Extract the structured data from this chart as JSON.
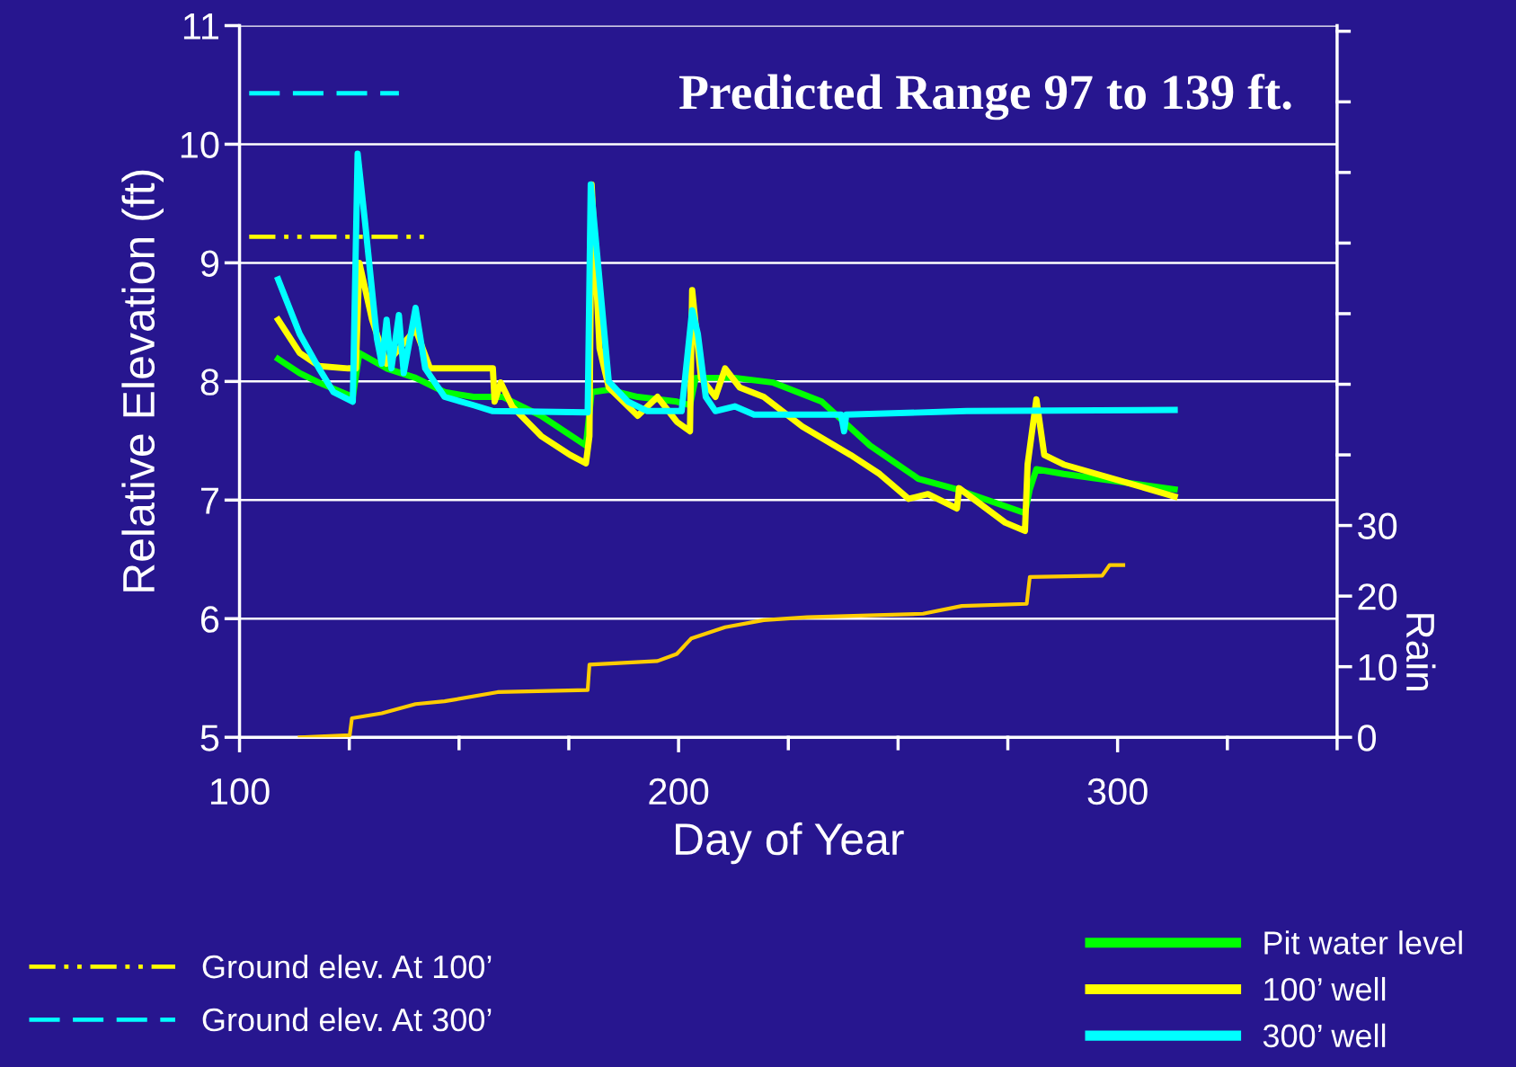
{
  "chart_data": {
    "type": "line",
    "xlabel": "Day of Year",
    "ylabel": "Relative Elevation (ft)",
    "y2label": "Rain",
    "annotations": [
      "Predicted Range 97 to 139 ft."
    ],
    "xlim": [
      100,
      350
    ],
    "xticks": [
      100,
      {
        "value": 125,
        "label": null
      },
      {
        "value": 150,
        "label": null
      },
      {
        "value": 175,
        "label": null
      },
      200,
      {
        "value": 225,
        "label": null
      },
      {
        "value": 250,
        "label": null
      },
      {
        "value": 275,
        "label": null
      },
      300,
      {
        "value": 325,
        "label": null
      },
      {
        "value": 350,
        "label": null
      }
    ],
    "ylim": [
      5,
      11
    ],
    "yticks": [
      5,
      6,
      7,
      8,
      9,
      10,
      11
    ],
    "y2lim": [
      0,
      100.8
    ],
    "y2ticks": [
      0,
      10,
      20,
      30,
      {
        "value": 40,
        "label": null
      },
      {
        "value": 50,
        "label": null
      },
      {
        "value": 60,
        "label": null
      },
      {
        "value": 70,
        "label": null
      },
      {
        "value": 80,
        "label": null
      },
      {
        "value": 90,
        "label": null
      },
      {
        "value": 100,
        "label": null
      }
    ],
    "grid": "y",
    "legend": "bottom",
    "series": [
      {
        "name": "Ground elev. At 100’",
        "color": "#ffff00",
        "line_style": "dashdot",
        "x": [
          102.2,
          142.5
        ],
        "values": [
          9.22,
          9.22
        ]
      },
      {
        "name": "Ground elev. At 300’",
        "color": "#00ffff",
        "line_style": "dashed",
        "x": [
          102.2,
          136.3
        ],
        "values": [
          10.43,
          10.43
        ]
      },
      {
        "name": "Pit water level",
        "color": "#00ff00",
        "line_style": "solid",
        "x": [
          108.8,
          113.7,
          118.1,
          125.8,
          127.3,
          133.5,
          140.1,
          146.7,
          153.3,
          159.9,
          168.7,
          178.9,
          180.2,
          184.1,
          190.7,
          199.6,
          202.6,
          203.9,
          212.8,
          221.6,
          232.6,
          243.6,
          254.6,
          263.4,
          278.9,
          280.0,
          281.5,
          287.7,
          313.0
        ],
        "values": [
          8.19,
          8.07,
          7.99,
          7.87,
          8.24,
          8.11,
          8.03,
          7.91,
          7.87,
          7.87,
          7.71,
          7.46,
          7.91,
          7.93,
          7.87,
          7.83,
          7.8,
          8.03,
          8.03,
          7.99,
          7.83,
          7.46,
          7.18,
          7.09,
          6.89,
          7.09,
          7.26,
          7.22,
          7.09
        ]
      },
      {
        "name": "100’ well",
        "color": "#ffff00",
        "line_style": "solid",
        "x": [
          108.8,
          113.7,
          118.1,
          124.7,
          126.5,
          127.3,
          130.2,
          133.5,
          140.1,
          143.4,
          157.7,
          158.1,
          159.5,
          162.1,
          168.7,
          175.3,
          178.9,
          179.7,
          180.2,
          182.0,
          184.1,
          190.7,
          195.2,
          199.6,
          202.6,
          203.1,
          205.1,
          208.4,
          210.6,
          213.9,
          219.4,
          228.2,
          239.2,
          245.8,
          252.4,
          256.8,
          263.4,
          263.9,
          274.4,
          278.9,
          279.5,
          281.5,
          283.3,
          287.7,
          313.0
        ],
        "values": [
          8.52,
          8.24,
          8.13,
          8.11,
          8.11,
          9.0,
          8.52,
          8.15,
          8.44,
          8.11,
          8.11,
          7.83,
          7.99,
          7.79,
          7.54,
          7.38,
          7.31,
          7.54,
          9.66,
          8.28,
          7.95,
          7.71,
          7.87,
          7.66,
          7.58,
          8.77,
          8.03,
          7.87,
          8.11,
          7.95,
          7.87,
          7.62,
          7.38,
          7.22,
          7.01,
          7.05,
          6.93,
          7.1,
          6.81,
          6.74,
          7.3,
          7.85,
          7.38,
          7.3,
          7.03
        ]
      },
      {
        "name": "300’ well",
        "color": "#00ffff",
        "line_style": "solid",
        "x": [
          108.8,
          113.7,
          118.1,
          121.4,
          125.8,
          126.9,
          128.6,
          131.3,
          132.4,
          133.5,
          134.6,
          136.3,
          137.4,
          140.1,
          142.3,
          146.7,
          153.3,
          157.7,
          179.3,
          180.0,
          182.0,
          184.1,
          188.5,
          192.9,
          200.7,
          203.1,
          204.4,
          206.2,
          208.4,
          212.8,
          217.2,
          237.0,
          237.7,
          238.2,
          265.6,
          313.0
        ],
        "values": [
          8.86,
          8.4,
          8.11,
          7.91,
          7.83,
          9.92,
          9.34,
          8.36,
          8.15,
          8.52,
          8.11,
          8.56,
          8.07,
          8.62,
          8.11,
          7.87,
          7.8,
          7.75,
          7.74,
          9.66,
          8.85,
          8.0,
          7.83,
          7.75,
          7.75,
          8.6,
          8.4,
          7.87,
          7.75,
          7.79,
          7.72,
          7.72,
          7.58,
          7.72,
          7.75,
          7.76
        ]
      },
      {
        "color": "#ffcc00",
        "axis": "y2",
        "line_style": "solid",
        "x": [
          113.7,
          125.1,
          125.6,
          132.4,
          140.1,
          146.7,
          158.8,
          179.3,
          179.7,
          195.2,
          199.6,
          202.9,
          210.6,
          219.4,
          229.3,
          255.7,
          264.5,
          279.3,
          280.0,
          296.5,
          298.2,
          301.3
        ],
        "values": [
          0,
          0.3,
          2.7,
          3.4,
          4.7,
          5.1,
          6.4,
          6.7,
          10.3,
          10.8,
          11.8,
          14.0,
          15.6,
          16.6,
          17.0,
          17.5,
          18.6,
          18.9,
          22.7,
          22.9,
          24.4,
          24.4
        ]
      }
    ]
  }
}
